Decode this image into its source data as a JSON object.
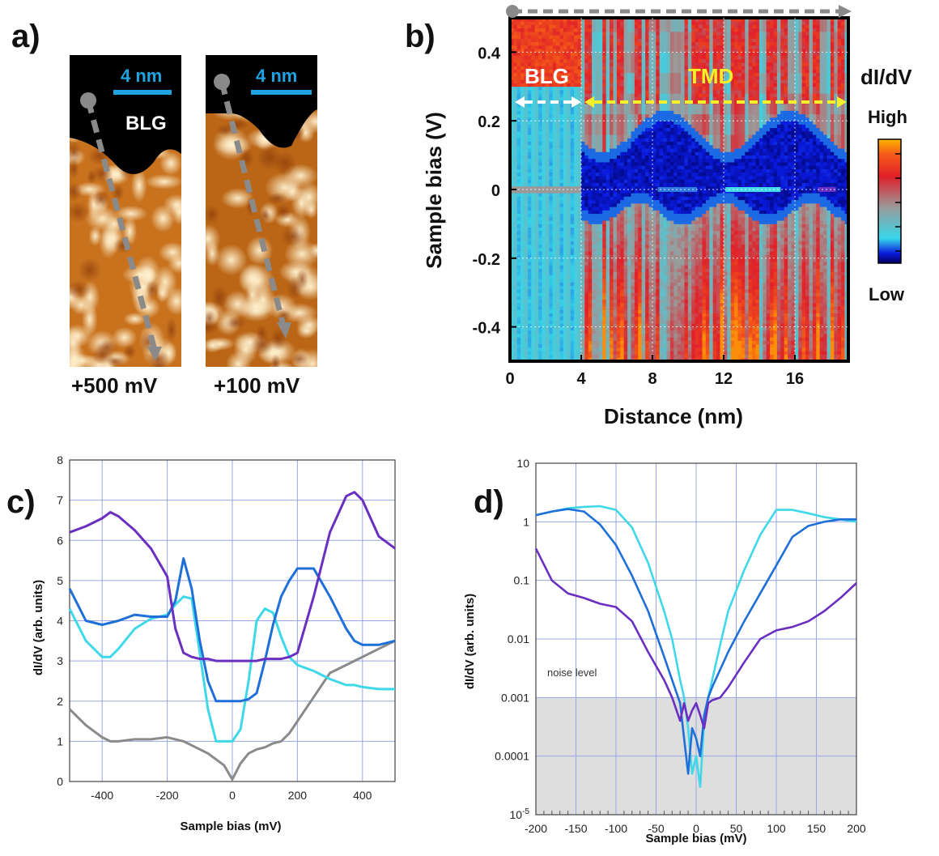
{
  "panels": {
    "a": {
      "letter": "a)",
      "images": [
        {
          "scale_label": "4 nm",
          "region_label": "BLG",
          "bias_label": "+500 mV"
        },
        {
          "scale_label": "4 nm",
          "bias_label": "+100 mV"
        }
      ]
    },
    "b": {
      "letter": "b)",
      "region_labels": [
        "BLG",
        "TMD"
      ],
      "colorbar": {
        "title": "dI/dV",
        "high": "High",
        "low": "Low"
      }
    },
    "c": {
      "letter": "c)"
    },
    "d": {
      "letter": "d)",
      "annotation": "noise level"
    }
  },
  "colors": {
    "gray": "#8a8a8a",
    "cyan": "#3fd8e8",
    "blue": "#1f6fd8",
    "purple": "#6a2fc0",
    "scale_bar": "#1fa2e0",
    "grid": "#9aa6e6"
  },
  "chart_data": [
    {
      "panel": "b",
      "type": "heatmap",
      "xlabel": "Distance (nm)",
      "ylabel": "Sample bias (V)",
      "xlim": [
        0,
        19
      ],
      "ylim": [
        -0.5,
        0.5
      ],
      "xticks": [
        "0",
        "4",
        "8",
        "12",
        "16"
      ],
      "yticks": [
        "0.4",
        "0.2",
        "0",
        "-0.2",
        "-0.4"
      ],
      "colorbar_title": "dI/dV",
      "colorbar_range": [
        "Low",
        "High"
      ],
      "regions": [
        {
          "name": "BLG",
          "x_range": [
            0,
            4
          ]
        },
        {
          "name": "TMD",
          "x_range": [
            4,
            19
          ]
        }
      ]
    },
    {
      "panel": "c",
      "type": "line",
      "xlabel": "Sample bias (mV)",
      "ylabel": "dI/dV (arb. units)",
      "xlim": [
        -500,
        500
      ],
      "ylim": [
        0,
        8
      ],
      "xticks": [
        "-400",
        "-200",
        "0",
        "200",
        "400"
      ],
      "yticks": [
        "0",
        "1",
        "2",
        "3",
        "4",
        "5",
        "6",
        "7",
        "8"
      ],
      "x": [
        -500,
        -450,
        -400,
        -375,
        -350,
        -300,
        -250,
        -200,
        -175,
        -150,
        -125,
        -100,
        -75,
        -50,
        -25,
        0,
        25,
        50,
        75,
        100,
        125,
        150,
        175,
        200,
        250,
        300,
        350,
        375,
        400,
        450,
        500
      ],
      "series": [
        {
          "color": "gray",
          "values": [
            1.8,
            1.4,
            1.1,
            1.0,
            1.0,
            1.05,
            1.05,
            1.1,
            1.05,
            1.0,
            0.9,
            0.8,
            0.7,
            0.55,
            0.4,
            0.05,
            0.45,
            0.7,
            0.8,
            0.85,
            0.95,
            1.0,
            1.2,
            1.5,
            2.1,
            2.7,
            2.9,
            3.0,
            3.1,
            3.3,
            3.5
          ]
        },
        {
          "color": "cyan",
          "values": [
            4.3,
            3.5,
            3.1,
            3.1,
            3.3,
            3.8,
            4.05,
            4.15,
            4.4,
            4.6,
            4.55,
            3.2,
            1.8,
            1.0,
            1.0,
            1.0,
            1.3,
            2.5,
            4.0,
            4.3,
            4.2,
            3.6,
            3.1,
            2.9,
            2.75,
            2.55,
            2.4,
            2.4,
            2.35,
            2.3,
            2.3
          ]
        },
        {
          "color": "blue",
          "values": [
            4.8,
            4.0,
            3.9,
            3.95,
            4.0,
            4.15,
            4.1,
            4.1,
            4.5,
            5.55,
            4.8,
            3.5,
            2.5,
            2.0,
            2.0,
            2.0,
            2.0,
            2.05,
            2.2,
            3.0,
            3.9,
            4.6,
            5.0,
            5.3,
            5.3,
            4.6,
            3.8,
            3.5,
            3.4,
            3.4,
            3.5
          ]
        },
        {
          "color": "purple",
          "values": [
            6.2,
            6.35,
            6.55,
            6.7,
            6.6,
            6.25,
            5.8,
            5.1,
            3.8,
            3.2,
            3.1,
            3.05,
            3.05,
            3.0,
            3.0,
            3.0,
            3.0,
            3.0,
            3.0,
            3.05,
            3.05,
            3.05,
            3.1,
            3.2,
            4.6,
            6.2,
            7.1,
            7.2,
            7.0,
            6.1,
            5.8
          ]
        }
      ]
    },
    {
      "panel": "d",
      "type": "line",
      "xlabel": "Sample bias (mV)",
      "ylabel": "dI/dV (arb. units)",
      "yscale": "log",
      "xlim": [
        -200,
        200
      ],
      "ylim": [
        1e-05,
        10
      ],
      "xticks": [
        "-200",
        "-150",
        "-100",
        "-50",
        "0",
        "50",
        "100",
        "150",
        "200"
      ],
      "yticks": [
        "10",
        "1",
        "0.1",
        "0.01",
        "0.001",
        "0.0001",
        "10^-5"
      ],
      "noise_level": 0.001,
      "x": [
        -200,
        -180,
        -160,
        -140,
        -120,
        -100,
        -80,
        -60,
        -40,
        -30,
        -20,
        -15,
        -10,
        -5,
        0,
        5,
        10,
        15,
        20,
        30,
        40,
        60,
        80,
        100,
        120,
        140,
        160,
        180,
        200
      ],
      "series": [
        {
          "color": "cyan",
          "values": [
            1.3,
            1.5,
            1.7,
            1.8,
            1.85,
            1.6,
            0.8,
            0.2,
            0.03,
            0.01,
            0.002,
            0.001,
            0.0003,
            5e-05,
            0.0001,
            3e-05,
            0.0004,
            0.001,
            0.002,
            0.008,
            0.03,
            0.15,
            0.6,
            1.6,
            1.6,
            1.4,
            1.2,
            1.1,
            1.0
          ]
        },
        {
          "color": "blue",
          "values": [
            1.3,
            1.5,
            1.65,
            1.5,
            0.9,
            0.4,
            0.12,
            0.03,
            0.005,
            0.002,
            0.0008,
            0.0002,
            5e-05,
            0.0003,
            0.0002,
            0.0001,
            0.0005,
            0.001,
            0.0015,
            0.003,
            0.006,
            0.02,
            0.06,
            0.18,
            0.55,
            0.85,
            1.0,
            1.1,
            1.1
          ]
        },
        {
          "color": "purple",
          "values": [
            0.35,
            0.1,
            0.06,
            0.05,
            0.04,
            0.035,
            0.02,
            0.006,
            0.002,
            0.001,
            0.0004,
            0.0008,
            0.0004,
            0.0006,
            0.0008,
            0.0005,
            0.0003,
            0.0008,
            0.0009,
            0.001,
            0.0015,
            0.004,
            0.01,
            0.014,
            0.016,
            0.02,
            0.03,
            0.05,
            0.09
          ]
        }
      ]
    }
  ]
}
